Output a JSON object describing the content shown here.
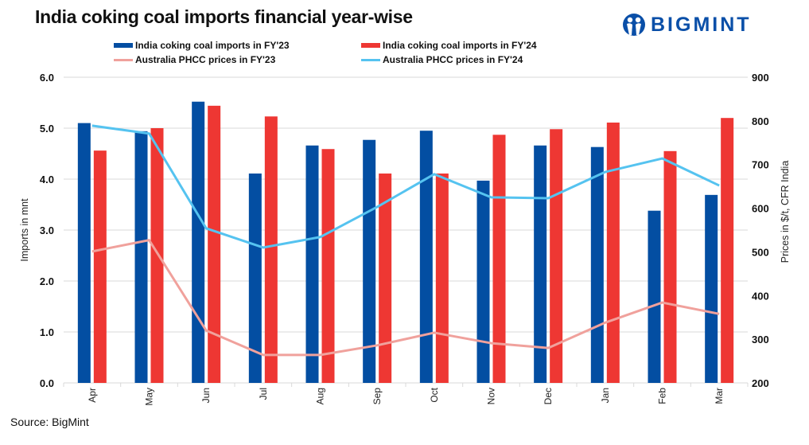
{
  "chart_data": {
    "type": "bar",
    "title": "India coking coal imports financial year-wise",
    "categories": [
      "Apr",
      "May",
      "Jun",
      "Jul",
      "Aug",
      "Sep",
      "Oct",
      "Nov",
      "Dec",
      "Jan",
      "Feb",
      "Mar"
    ],
    "series": [
      {
        "name": "India coking coal imports in FY'23",
        "type": "bar",
        "axis": "left",
        "color": "#034ea2",
        "values": [
          5.1,
          4.94,
          5.52,
          4.11,
          4.66,
          4.77,
          4.95,
          3.97,
          4.66,
          4.63,
          3.38,
          3.69
        ]
      },
      {
        "name": "India coking coal imports in FY'24",
        "type": "bar",
        "axis": "left",
        "color": "#ee3733",
        "values": [
          4.56,
          5.0,
          5.44,
          5.23,
          4.59,
          4.11,
          4.11,
          4.87,
          4.98,
          5.11,
          4.55,
          5.2
        ]
      },
      {
        "name": "Australia PHCC prices in FY'23",
        "type": "line",
        "axis": "right",
        "color": "#f0a19c",
        "values": [
          501,
          527,
          320,
          264,
          264,
          286,
          315,
          291,
          280,
          338,
          384,
          358
        ]
      },
      {
        "name": "Australia PHCC prices in FY'24",
        "type": "line",
        "axis": "right",
        "color": "#55c3f0",
        "values": [
          789,
          771,
          554,
          510,
          534,
          603,
          678,
          625,
          623,
          683,
          714,
          652
        ]
      }
    ],
    "ylabel": "Imports in mnt",
    "ylim": [
      0,
      6
    ],
    "yticks": [
      "0.0",
      "1.0",
      "2.0",
      "3.0",
      "4.0",
      "5.0",
      "6.0"
    ],
    "y2label": "Prices in $/t, CFR India",
    "y2lim": [
      200,
      900
    ],
    "y2ticks": [
      "200",
      "300",
      "400",
      "500",
      "600",
      "700",
      "800",
      "900"
    ],
    "xlabel": "",
    "grid": true,
    "legend_position": "top"
  },
  "legend": {
    "items": [
      {
        "label": "India coking coal imports in FY'23",
        "kind": "bar",
        "color": "#034ea2"
      },
      {
        "label": "India coking coal imports in FY'24",
        "kind": "bar",
        "color": "#ee3733"
      },
      {
        "label": "Australia PHCC prices in FY'23",
        "kind": "line",
        "color": "#f0a19c"
      },
      {
        "label": "Australia PHCC prices in FY'24",
        "kind": "line",
        "color": "#55c3f0"
      }
    ]
  },
  "logo": {
    "text": "BIGMINT",
    "icon": "bigmint-people-icon",
    "color": "#0a4fa8"
  },
  "source": "Source: BigMint"
}
